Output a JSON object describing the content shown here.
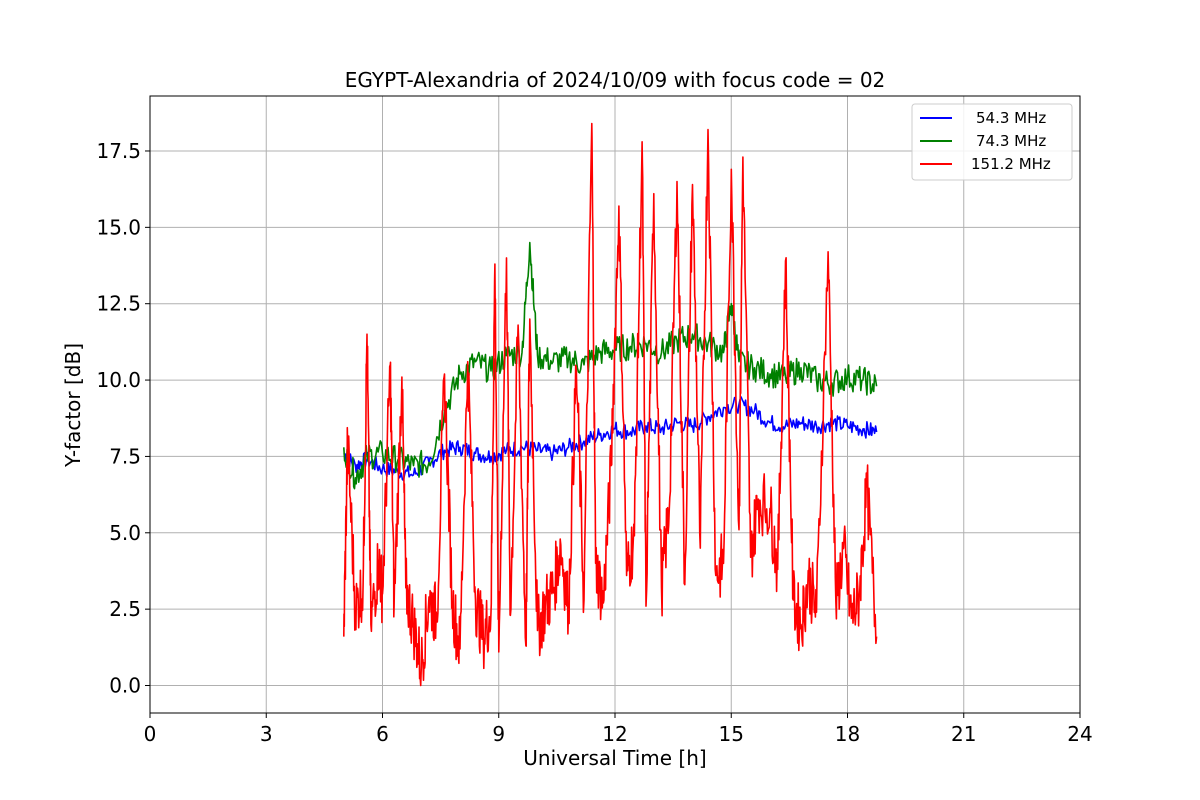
{
  "chart_data": {
    "type": "line",
    "title": "EGYPT-Alexandria of 2024/10/09 with focus code = 02",
    "xlabel": "Universal Time [h]",
    "ylabel": "Y-factor [dB]",
    "xlim": [
      0,
      24
    ],
    "ylim": [
      -0.9,
      19.3
    ],
    "xticks": [
      0,
      3,
      6,
      9,
      12,
      15,
      18,
      21,
      24
    ],
    "xtick_labels": [
      "0",
      "3",
      "6",
      "9",
      "12",
      "15",
      "18",
      "21",
      "24"
    ],
    "yticks": [
      0,
      2.5,
      5,
      7.5,
      10,
      12.5,
      15,
      17.5
    ],
    "ytick_labels": [
      "0.0",
      "2.5",
      "5.0",
      "7.5",
      "10.0",
      "12.5",
      "15.0",
      "17.5"
    ],
    "grid": true,
    "legend_position": "top-right",
    "series": [
      {
        "name": "54.3 MHz",
        "color": "#0000ff",
        "x": [
          5.0,
          5.3,
          5.6,
          6.0,
          6.4,
          6.8,
          7.2,
          7.6,
          8.0,
          8.4,
          8.8,
          9.2,
          9.6,
          10.0,
          10.4,
          10.8,
          11.2,
          11.6,
          12.0,
          12.4,
          12.8,
          13.2,
          13.6,
          14.0,
          14.4,
          14.8,
          15.2,
          15.6,
          16.0,
          16.4,
          16.8,
          17.2,
          17.6,
          18.0,
          18.4,
          18.75
        ],
        "y": [
          7.6,
          7.2,
          7.4,
          7.1,
          7.0,
          6.9,
          7.3,
          7.7,
          7.8,
          7.6,
          7.5,
          7.7,
          7.8,
          7.7,
          7.6,
          7.8,
          8.0,
          8.2,
          8.4,
          8.3,
          8.5,
          8.4,
          8.6,
          8.5,
          8.8,
          9.1,
          9.2,
          9.0,
          8.6,
          8.5,
          8.6,
          8.5,
          8.6,
          8.5,
          8.4,
          8.3
        ]
      },
      {
        "name": "74.3 MHz",
        "color": "#008000",
        "x": [
          5.0,
          5.3,
          5.6,
          6.0,
          6.4,
          6.8,
          7.2,
          7.6,
          8.0,
          8.4,
          8.8,
          9.2,
          9.6,
          9.8,
          10.0,
          10.4,
          10.8,
          11.2,
          11.6,
          12.0,
          12.4,
          12.8,
          13.2,
          13.6,
          14.0,
          14.4,
          14.8,
          15.0,
          15.2,
          15.6,
          16.0,
          16.4,
          16.8,
          17.2,
          17.6,
          18.0,
          18.4,
          18.75
        ],
        "y": [
          7.8,
          6.8,
          7.5,
          7.6,
          7.4,
          7.2,
          7.3,
          9.0,
          10.2,
          10.6,
          10.3,
          10.8,
          10.9,
          14.5,
          10.8,
          10.6,
          10.7,
          10.5,
          10.9,
          11.0,
          11.1,
          11.2,
          10.9,
          11.3,
          11.5,
          11.2,
          10.9,
          12.5,
          10.6,
          10.4,
          10.2,
          10.1,
          10.4,
          10.0,
          9.9,
          10.1,
          10.0,
          9.8
        ]
      },
      {
        "name": "151.2 MHz",
        "color": "#ff0000",
        "x": [
          5.0,
          5.1,
          5.3,
          5.5,
          5.6,
          5.7,
          5.9,
          6.0,
          6.2,
          6.3,
          6.5,
          6.6,
          6.8,
          7.0,
          7.2,
          7.4,
          7.6,
          7.8,
          8.0,
          8.2,
          8.4,
          8.6,
          8.8,
          8.9,
          9.0,
          9.2,
          9.3,
          9.5,
          9.7,
          9.8,
          10.0,
          10.2,
          10.4,
          10.6,
          10.8,
          11.0,
          11.2,
          11.4,
          11.5,
          11.7,
          11.9,
          12.1,
          12.3,
          12.5,
          12.7,
          12.8,
          13.0,
          13.2,
          13.4,
          13.6,
          13.8,
          14.0,
          14.2,
          14.4,
          14.6,
          14.8,
          15.0,
          15.2,
          15.3,
          15.5,
          15.7,
          16.0,
          16.2,
          16.4,
          16.6,
          16.8,
          17.0,
          17.2,
          17.5,
          17.7,
          17.9,
          18.1,
          18.3,
          18.5,
          18.75
        ],
        "y": [
          1.6,
          8.0,
          2.5,
          3.3,
          11.5,
          2.0,
          4.1,
          3.0,
          10.5,
          2.6,
          10.1,
          3.2,
          2.0,
          0.6,
          2.9,
          2.2,
          10.2,
          2.7,
          1.2,
          10.6,
          2.8,
          1.6,
          2.4,
          13.8,
          1.1,
          14.0,
          2.3,
          11.8,
          1.3,
          12.0,
          1.8,
          2.6,
          3.1,
          4.6,
          2.5,
          10.4,
          2.8,
          18.4,
          4.0,
          2.7,
          7.2,
          15.7,
          3.6,
          4.9,
          17.8,
          2.6,
          16.1,
          3.2,
          5.8,
          16.5,
          3.3,
          16.4,
          4.5,
          18.2,
          3.6,
          4.0,
          16.9,
          5.1,
          17.3,
          4.2,
          6.1,
          5.8,
          3.8,
          13.9,
          2.8,
          2.0,
          3.5,
          2.4,
          14.2,
          2.7,
          4.5,
          2.2,
          2.9,
          6.5,
          1.6
        ]
      }
    ]
  }
}
